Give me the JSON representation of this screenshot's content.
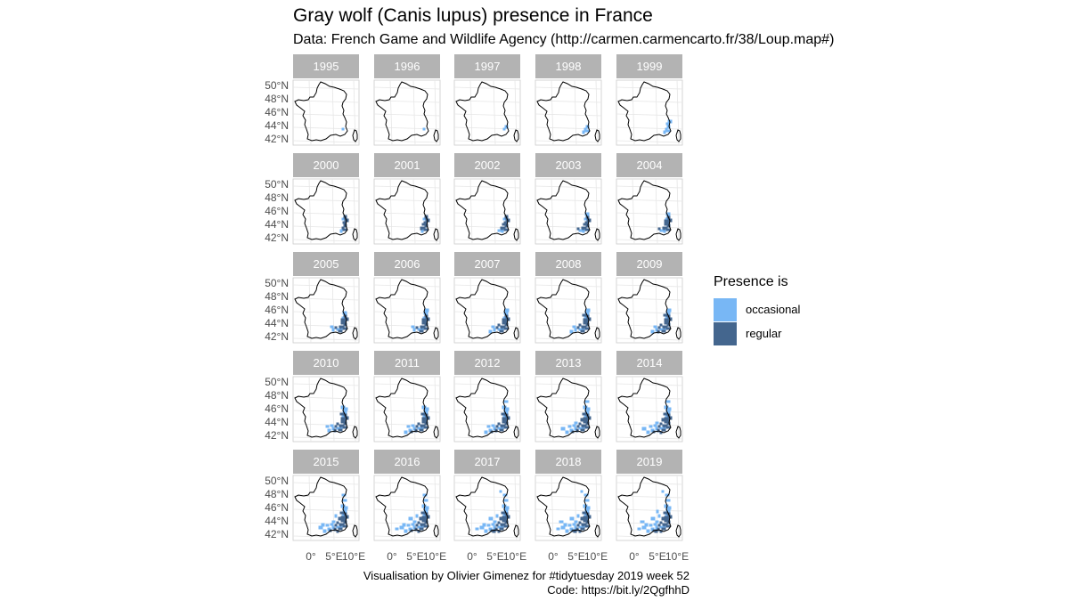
{
  "title": "Gray wolf (Canis lupus) presence in France",
  "subtitle": "Data: French Game and Wildlife Agency (http://carmen.carmencarto.fr/38/Loup.map#)",
  "caption_line1": "Visualisation by Olivier Gimenez for #tidytuesday 2019 week 52",
  "caption_line2": "Code: https://bit.ly/2QgfhhD",
  "legend": {
    "title": "Presence is",
    "items": [
      {
        "label": "occasional",
        "color": "#78b7f5"
      },
      {
        "label": "regular",
        "color": "#44668e"
      }
    ]
  },
  "y_axis_labels": [
    "50°N",
    "48°N",
    "46°N",
    "44°N",
    "42°N"
  ],
  "x_axis_labels": [
    "0°",
    "5°E",
    "10°E"
  ],
  "colors": {
    "strip": "#b3b3b3",
    "strip_text": "#ffffff",
    "grid": "#e6e6e6",
    "outline": "#000000",
    "occasional": "#78b7f5",
    "regular": "#44668e"
  },
  "years": [
    "1995",
    "1996",
    "1997",
    "1998",
    "1999",
    "2000",
    "2001",
    "2002",
    "2003",
    "2004",
    "2005",
    "2006",
    "2007",
    "2008",
    "2009",
    "2010",
    "2011",
    "2012",
    "2013",
    "2014",
    "2015",
    "2016",
    "2017",
    "2018",
    "2019"
  ],
  "intensity": [
    0.02,
    0.03,
    0.06,
    0.1,
    0.14,
    0.2,
    0.24,
    0.28,
    0.32,
    0.36,
    0.42,
    0.46,
    0.5,
    0.53,
    0.56,
    0.6,
    0.64,
    0.68,
    0.74,
    0.78,
    0.84,
    0.9,
    0.94,
    0.97,
    1.0
  ]
}
